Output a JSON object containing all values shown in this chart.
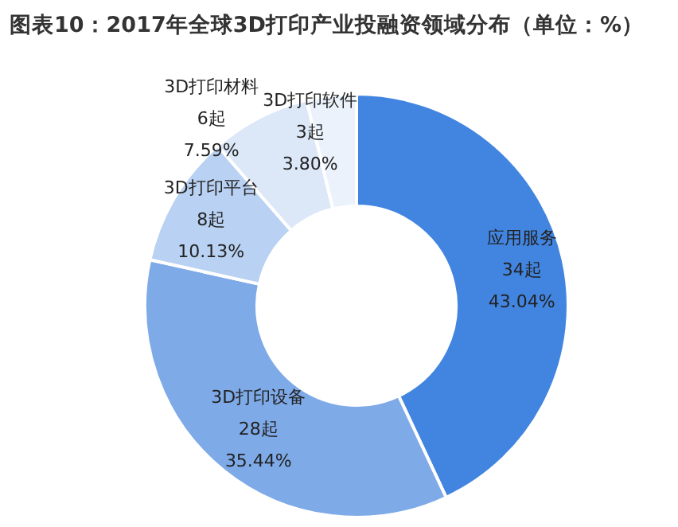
{
  "chart_data": {
    "type": "donut",
    "title": "图表10：2017年全球3D打印产业投融资领域分布（单位：%）",
    "categories": [
      "应用服务",
      "3D打印设备",
      "3D打印平台",
      "3D打印材料",
      "3D打印软件"
    ],
    "values": [
      34,
      28,
      8,
      6,
      3
    ],
    "value_labels": [
      "34起\n43.04%",
      "28起\n35.44%",
      "8起\n10.13%",
      "6起\n7.59%",
      "3起\n3.80%"
    ],
    "colors": [
      "#4285e0",
      "#7eaae8",
      "#b9d1f2",
      "#dce8f8",
      "#ebf2fb"
    ]
  }
}
